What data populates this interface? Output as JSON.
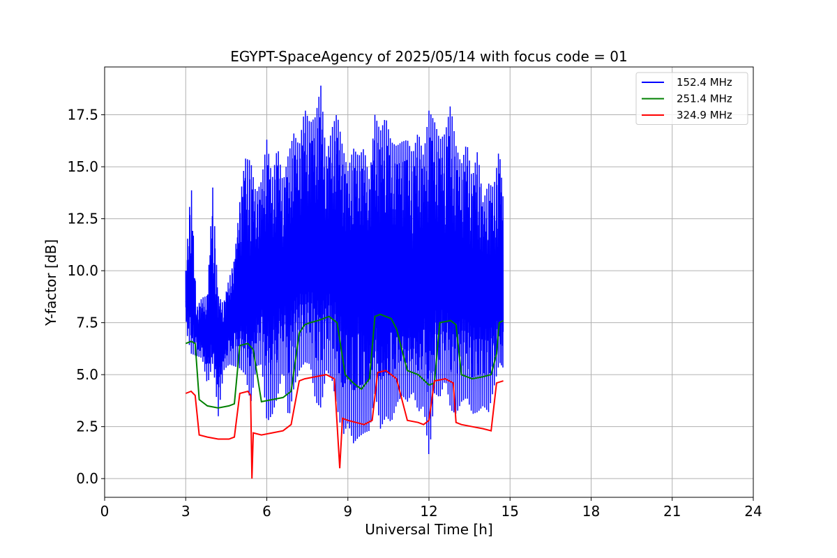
{
  "chart_data": {
    "type": "line",
    "title": "EGYPT-SpaceAgency of 2025/05/14 with focus code = 01",
    "xlabel": "Universal Time [h]",
    "ylabel": "Y-factor [dB]",
    "xlim": [
      0,
      24
    ],
    "ylim": [
      -0.9,
      19.8
    ],
    "xticks": [
      0,
      3,
      6,
      9,
      12,
      15,
      18,
      21,
      24
    ],
    "yticks": [
      0.0,
      2.5,
      5.0,
      7.5,
      10.0,
      12.5,
      15.0,
      17.5
    ],
    "xtick_labels": [
      "0",
      "3",
      "6",
      "9",
      "12",
      "15",
      "18",
      "21",
      "24"
    ],
    "ytick_labels": [
      "0.0",
      "2.5",
      "5.0",
      "7.5",
      "10.0",
      "12.5",
      "15.0",
      "17.5"
    ],
    "grid": true,
    "legend_position": "top-right",
    "series": [
      {
        "name": "152.4 MHz",
        "color": "#0000ff",
        "x": [
          3.0,
          3.2,
          3.4,
          3.6,
          3.8,
          4.0,
          4.2,
          4.4,
          4.6,
          4.8,
          5.0,
          5.2,
          5.4,
          5.6,
          5.8,
          6.0,
          6.2,
          6.4,
          6.6,
          6.8,
          7.0,
          7.2,
          7.4,
          7.6,
          7.8,
          8.0,
          8.2,
          8.4,
          8.6,
          8.8,
          9.0,
          9.2,
          9.4,
          9.6,
          9.8,
          10.0,
          10.2,
          10.4,
          10.6,
          10.8,
          11.0,
          11.2,
          11.4,
          11.6,
          11.8,
          12.0,
          12.2,
          12.4,
          12.6,
          12.8,
          13.0,
          13.2,
          13.4,
          13.6,
          13.8,
          14.0,
          14.2,
          14.4,
          14.6,
          14.75
        ],
        "y": [
          8.5,
          8.8,
          7.0,
          6.8,
          7.1,
          6.9,
          7.3,
          7.0,
          7.4,
          8.6,
          8.9,
          9.1,
          9.2,
          9.4,
          9.3,
          9.6,
          9.8,
          9.7,
          10.1,
          9.9,
          10.3,
          10.5,
          10.2,
          10.6,
          10.8,
          10.5,
          10.4,
          10.7,
          10.2,
          10.0,
          9.8,
          10.1,
          10.3,
          10.0,
          10.4,
          10.6,
          10.2,
          10.1,
          9.9,
          10.0,
          9.7,
          9.8,
          9.5,
          9.7,
          9.6,
          9.4,
          9.8,
          9.9,
          9.6,
          9.5,
          9.3,
          9.4,
          9.2,
          9.0,
          9.1,
          8.8,
          8.9,
          8.6,
          8.7,
          8.8
        ],
        "spike_max": [
          10.0,
          14.3,
          8.2,
          8.7,
          8.8,
          14.0,
          8.8,
          8.4,
          9.6,
          10.5,
          13.3,
          15.4,
          15.3,
          13.7,
          14.3,
          16.3,
          14.4,
          16.0,
          14.2,
          15.6,
          16.6,
          16.0,
          17.8,
          17.1,
          17.4,
          18.9,
          15.4,
          16.8,
          17.6,
          16.0,
          14.8,
          15.9,
          15.5,
          15.9,
          14.3,
          17.5,
          16.7,
          17.4,
          16.2,
          16.0,
          16.2,
          16.3,
          15.6,
          16.7,
          15.5,
          17.7,
          17.2,
          16.3,
          16.6,
          18.0,
          16.0,
          15.1,
          16.2,
          14.4,
          15.8,
          13.3,
          14.2,
          14.0,
          15.9,
          13.4
        ],
        "spike_min": [
          7.2,
          6.0,
          5.9,
          5.8,
          4.5,
          5.6,
          3.0,
          5.2,
          5.5,
          5.4,
          5.3,
          5.0,
          3.6,
          5.4,
          5.5,
          2.7,
          3.1,
          4.0,
          5.3,
          2.8,
          4.4,
          5.2,
          5.6,
          5.5,
          3.7,
          3.4,
          5.2,
          4.8,
          3.4,
          2.0,
          2.7,
          1.7,
          2.0,
          2.2,
          2.3,
          4.2,
          2.4,
          3.0,
          2.7,
          3.6,
          4.0,
          3.7,
          4.2,
          3.2,
          3.5,
          1.0,
          4.1,
          3.9,
          4.8,
          3.3,
          3.1,
          3.7,
          3.9,
          3.1,
          3.2,
          3.5,
          3.2,
          4.4,
          5.6,
          5.3
        ]
      },
      {
        "name": "251.4 MHz",
        "color": "#008000",
        "x": [
          3.0,
          3.2,
          3.35,
          3.5,
          3.8,
          4.2,
          4.6,
          4.8,
          5.0,
          5.3,
          5.5,
          5.8,
          6.2,
          6.6,
          6.9,
          7.2,
          7.4,
          7.6,
          7.9,
          8.3,
          8.6,
          8.9,
          9.2,
          9.5,
          9.8,
          10.0,
          10.2,
          10.6,
          10.8,
          11.2,
          11.6,
          12.0,
          12.2,
          12.4,
          12.8,
          13.0,
          13.2,
          13.6,
          14.0,
          14.3,
          14.5,
          14.6,
          14.75
        ],
        "y": [
          6.5,
          6.6,
          6.5,
          3.8,
          3.5,
          3.4,
          3.5,
          3.6,
          6.4,
          6.5,
          6.2,
          3.7,
          3.8,
          3.9,
          4.2,
          7.0,
          7.4,
          7.5,
          7.6,
          7.8,
          7.5,
          5.0,
          4.6,
          4.3,
          4.8,
          7.8,
          7.9,
          7.7,
          7.2,
          5.2,
          5.0,
          4.5,
          4.6,
          7.5,
          7.6,
          7.4,
          5.0,
          4.8,
          4.9,
          5.0,
          6.0,
          7.5,
          7.6
        ]
      },
      {
        "name": "324.9 MHz",
        "color": "#ff0000",
        "x": [
          3.0,
          3.2,
          3.35,
          3.5,
          3.8,
          4.2,
          4.6,
          4.8,
          5.0,
          5.3,
          5.4,
          5.45,
          5.5,
          5.8,
          6.2,
          6.6,
          6.9,
          7.2,
          7.4,
          7.8,
          8.2,
          8.5,
          8.7,
          8.8,
          9.0,
          9.3,
          9.6,
          9.9,
          10.1,
          10.4,
          10.6,
          10.8,
          11.2,
          11.6,
          11.8,
          12.0,
          12.2,
          12.6,
          12.9,
          13.0,
          13.2,
          13.6,
          14.0,
          14.3,
          14.5,
          14.75
        ],
        "y": [
          4.1,
          4.2,
          4.0,
          2.1,
          2.0,
          1.9,
          1.9,
          2.0,
          4.1,
          4.2,
          4.0,
          0.0,
          2.2,
          2.1,
          2.2,
          2.3,
          2.6,
          4.7,
          4.8,
          4.9,
          5.0,
          4.8,
          0.5,
          2.9,
          2.8,
          2.7,
          2.6,
          2.8,
          5.1,
          5.2,
          5.0,
          4.8,
          2.8,
          2.7,
          2.6,
          2.8,
          4.7,
          4.8,
          4.6,
          2.7,
          2.6,
          2.5,
          2.4,
          2.3,
          4.6,
          4.7
        ]
      }
    ]
  }
}
